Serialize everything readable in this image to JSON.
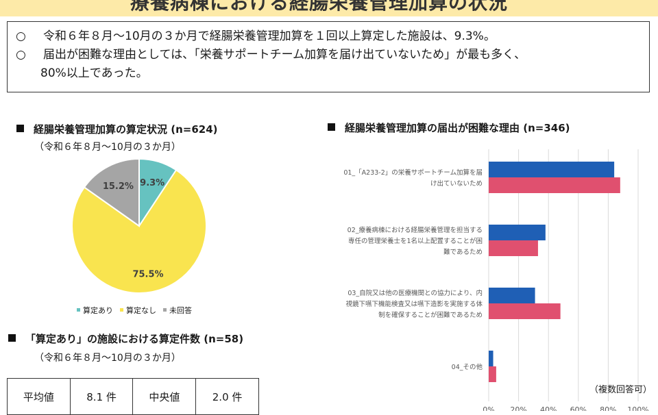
{
  "summary": {
    "bullet": "○",
    "line1": "令和６年８月～10月の３か月で経腸栄養管理加算を１回以上算定した施設は、9.3%。",
    "line2": "届出が困難な理由としては、「栄養サポートチーム加算を届け出ていないため」が最も多く、",
    "line2_cont": "80%以上であった。"
  },
  "chart_data": [
    {
      "type": "pie",
      "title": "経腸栄養管理加算の算定状況 (n=624)",
      "subtitle": "（令和６年８月～10月の３か月）",
      "slices": [
        {
          "label": "算定あり",
          "value": 9.3,
          "display": "9.3%",
          "color": "#66c2c0"
        },
        {
          "label": "算定なし",
          "value": 75.5,
          "display": "75.5%",
          "color": "#f9e44f"
        },
        {
          "label": "未回答",
          "value": 15.2,
          "display": "15.2%",
          "color": "#a5a5a5"
        }
      ],
      "legend_position": "bottom"
    },
    {
      "type": "bar",
      "orientation": "horizontal",
      "title": "経腸栄養管理加算の届出が困難な理由 (n=346)",
      "categories": [
        [
          "01_「A233-2」の栄養サポートチーム加算を届",
          "け出ていないため"
        ],
        [
          "02_療養病棟における経腸栄養管理を担当する",
          "専任の管理栄養士を1名以上配置することが困",
          "難であるため"
        ],
        [
          "03_自院又は他の医療機関との協力により、内",
          "視鏡下嚥下機能検査又は嚥下造影を実施する体",
          "制を確保することが困難であるため"
        ],
        [
          "04_その他"
        ]
      ],
      "series": [
        {
          "values": [
            84,
            38,
            31,
            3
          ],
          "color": "#1f5fb5"
        },
        {
          "values": [
            88,
            33,
            48,
            5
          ],
          "color": "#e0506f"
        }
      ],
      "xticks": [
        "0%",
        "20%",
        "40%",
        "60%",
        "80%",
        "100%"
      ],
      "xlim": [
        0,
        100
      ],
      "grid": true,
      "note": "（複数回答可）"
    }
  ],
  "stats": {
    "title": "「算定あり」の施設における算定件数 (n=58)",
    "subtitle": "（令和６年８月～10月の３か月）",
    "mean_label": "平均値",
    "mean_value": "8.1 件",
    "median_label": "中央値",
    "median_value": "2.0 件"
  }
}
